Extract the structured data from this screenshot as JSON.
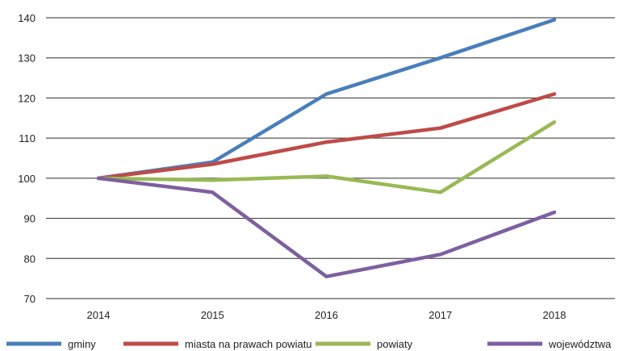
{
  "chart_data": {
    "type": "line",
    "title": "",
    "xlabel": "",
    "ylabel": "",
    "categories": [
      "2014",
      "2015",
      "2016",
      "2017",
      "2018"
    ],
    "ylim": [
      70,
      140
    ],
    "yticks": [
      70,
      80,
      90,
      100,
      110,
      120,
      130,
      140
    ],
    "grid": true,
    "legend_position": "bottom",
    "series": [
      {
        "name": "gminy",
        "color": "#4a7ebb",
        "values": [
          100,
          104,
          121,
          130,
          139.5
        ]
      },
      {
        "name": "miasta na prawach powiatu",
        "color": "#be4b48",
        "values": [
          100,
          103.5,
          109,
          112.5,
          121
        ]
      },
      {
        "name": "powiaty",
        "color": "#98b954",
        "values": [
          100,
          99.5,
          100.5,
          96.5,
          114
        ]
      },
      {
        "name": "województwa",
        "color": "#7d60a0",
        "values": [
          100,
          96.5,
          75.5,
          81,
          91.5
        ]
      }
    ]
  }
}
